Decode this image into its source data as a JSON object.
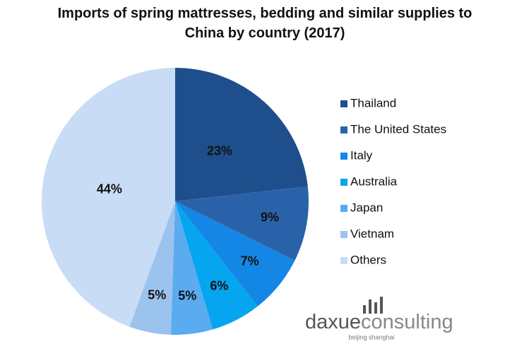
{
  "chart_data": {
    "type": "pie",
    "title": "Imports of spring mattresses, bedding and similar supplies to China by country (2017)",
    "categories": [
      "Thailand",
      "The United States",
      "Italy",
      "Australia",
      "Japan",
      "Vietnam",
      "Others"
    ],
    "values": [
      23,
      9,
      7,
      6,
      5,
      5,
      44
    ],
    "value_labels": [
      "23%",
      "9%",
      "7%",
      "6%",
      "5%",
      "5%",
      "44%"
    ],
    "colors": [
      "#1f4e8c",
      "#2a62aa",
      "#1487e6",
      "#05a5f0",
      "#5aabef",
      "#9cc2ee",
      "#c8dcf6"
    ],
    "legend": "right"
  },
  "logo": {
    "brand": "daxue",
    "suffix": "consulting",
    "tagline": "beijing shanghai"
  }
}
